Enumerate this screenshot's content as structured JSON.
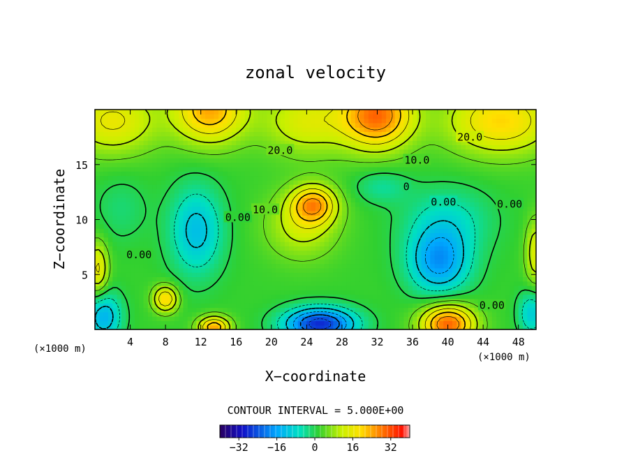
{
  "chart_data": {
    "type": "heatmap",
    "title": "zonal velocity",
    "xlabel": "X−coordinate",
    "ylabel": "Z−coordinate",
    "x_unit": "(×1000 m)",
    "y_unit": "(×1000 m)",
    "xlim": [
      0,
      50
    ],
    "ylim": [
      0,
      20
    ],
    "x_ticks": [
      4,
      8,
      12,
      16,
      20,
      24,
      28,
      32,
      36,
      40,
      44,
      48
    ],
    "y_ticks": [
      5,
      10,
      15
    ],
    "contour_interval_text": "CONTOUR INTERVAL = 5.000E+00",
    "contour_labels": [
      {
        "text": "20.0",
        "x": 21,
        "y": 16.3
      },
      {
        "text": "20.0",
        "x": 42.5,
        "y": 17.5
      },
      {
        "text": "10.0",
        "x": 36.5,
        "y": 15.4
      },
      {
        "text": "10.0",
        "x": 19.3,
        "y": 10.9
      },
      {
        "text": "0.00",
        "x": 16.2,
        "y": 10.2
      },
      {
        "text": "0.00",
        "x": 5.0,
        "y": 6.8
      },
      {
        "text": "0.00",
        "x": 39.5,
        "y": 11.6
      },
      {
        "text": "0.00",
        "x": 47.0,
        "y": 11.4
      },
      {
        "text": "0.00",
        "x": 45.0,
        "y": 2.2
      },
      {
        "text": "0",
        "x": 35.3,
        "y": 13.0
      }
    ],
    "field_features": [
      {
        "x": 13,
        "y": 20,
        "v": 22,
        "sx": 4,
        "sy": 3
      },
      {
        "x": 32,
        "y": 19.5,
        "v": 27,
        "sx": 4,
        "sy": 3
      },
      {
        "x": 24,
        "y": 19,
        "v": 12,
        "sx": 5,
        "sy": 3
      },
      {
        "x": 46,
        "y": 19,
        "v": 18,
        "sx": 6,
        "sy": 3
      },
      {
        "x": 2,
        "y": 19,
        "v": 14,
        "sx": 5,
        "sy": 3
      },
      {
        "x": 24.8,
        "y": 11.4,
        "v": 20,
        "sx": 2.5,
        "sy": 1.7
      },
      {
        "x": 23.5,
        "y": 9.5,
        "v": 10,
        "sx": 4,
        "sy": 3
      },
      {
        "x": 11.5,
        "y": 9,
        "v": -14,
        "sx": 3,
        "sy": 4
      },
      {
        "x": 39,
        "y": 6.2,
        "v": -19,
        "sx": 3.5,
        "sy": 3
      },
      {
        "x": 25.5,
        "y": 0.5,
        "v": -30,
        "sx": 4,
        "sy": 1.5
      },
      {
        "x": 40,
        "y": 0.5,
        "v": 28,
        "sx": 3,
        "sy": 1.8
      },
      {
        "x": 13.5,
        "y": 0.2,
        "v": 22,
        "sx": 1.8,
        "sy": 1
      },
      {
        "x": 8,
        "y": 2.8,
        "v": 18,
        "sx": 1.4,
        "sy": 1.2
      },
      {
        "x": 1,
        "y": 1.2,
        "v": -16,
        "sx": 2,
        "sy": 2.2
      },
      {
        "x": 49.5,
        "y": 1.5,
        "v": -12,
        "sx": 1.5,
        "sy": 2
      },
      {
        "x": 0.3,
        "y": 5.5,
        "v": 14,
        "sx": 1.2,
        "sy": 2.5
      },
      {
        "x": 50,
        "y": 7,
        "v": 12,
        "sx": 1.2,
        "sy": 3
      },
      {
        "x": 32.5,
        "y": 13,
        "v": -6,
        "sx": 3,
        "sy": 1.5
      },
      {
        "x": 40,
        "y": 10,
        "v": -8,
        "sx": 5,
        "sy": 3
      },
      {
        "x": 3,
        "y": 11,
        "v": -4,
        "sx": 3,
        "sy": 3
      }
    ],
    "base_value": 2,
    "colorbar": {
      "vmin": -40,
      "vmax": 40,
      "ticks": [
        -32,
        -16,
        0,
        16,
        32
      ],
      "tick_labels": [
        "−32",
        "−16",
        "0",
        "16",
        "32"
      ]
    },
    "grid": false
  }
}
